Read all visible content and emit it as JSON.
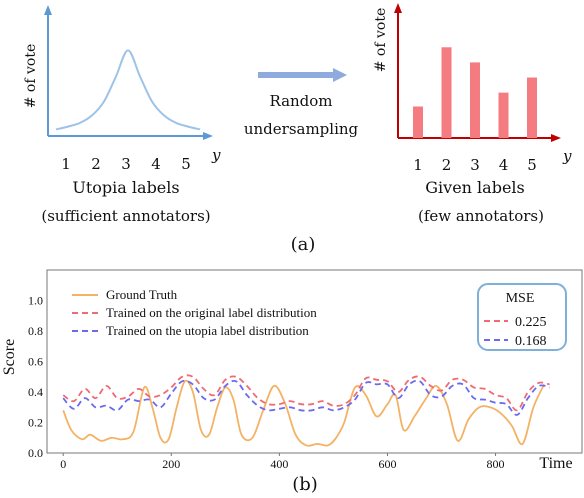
{
  "colors": {
    "bell_axis": "#5b9bd5",
    "bell_curve": "#9dc3e6",
    "red_axis": "#c00000",
    "bar_fill": "#f47b80",
    "arrow": "#8faadc",
    "ground_truth": "#f4b266",
    "original": "#ef6b73",
    "utopia": "#6a6af0",
    "legend_box": "#7fb0d8"
  },
  "panel_a": {
    "left": {
      "ylabel": "# of vote",
      "xvar": "y",
      "ticks": [
        "1",
        "2",
        "3",
        "4",
        "5"
      ],
      "title": "Utopia labels",
      "subtitle": "(sufficient annotators)"
    },
    "arrow_label": [
      "Random",
      "undersampling"
    ],
    "right": {
      "ylabel": "# of vote",
      "xvar": "y",
      "ticks": [
        "1",
        "2",
        "3",
        "4",
        "5"
      ],
      "title": "Given labels",
      "subtitle": "(few annotators)"
    },
    "caption": "(a)"
  },
  "panel_b": {
    "ylabel": "Score",
    "xlabel": "Time",
    "caption": "(b)",
    "legend": [
      "Ground Truth",
      "Trained on the original label distribution",
      "Trained on the utopia label distribution"
    ],
    "mse_box": {
      "title": "MSE",
      "values": [
        "0.225",
        "0.168"
      ]
    }
  },
  "chart_data": [
    {
      "type": "line",
      "title": "Utopia labels",
      "ylabel": "# of vote",
      "xlabel": "y",
      "x": [
        0.0,
        0.5,
        1.0,
        1.5,
        2.0,
        2.5,
        3.0,
        3.5,
        4.0,
        4.5,
        5.0,
        5.5,
        6.0
      ],
      "values": [
        0.05,
        0.08,
        0.12,
        0.2,
        0.35,
        0.62,
        0.9,
        0.62,
        0.35,
        0.2,
        0.12,
        0.08,
        0.05
      ],
      "ylim": [
        0,
        1
      ]
    },
    {
      "type": "bar",
      "title": "Given labels",
      "ylabel": "# of vote",
      "xlabel": "y",
      "categories": [
        "1",
        "2",
        "3",
        "4",
        "5"
      ],
      "values": [
        0.25,
        0.72,
        0.6,
        0.36,
        0.48
      ],
      "ylim": [
        0,
        1
      ]
    },
    {
      "type": "line",
      "ylabel": "Score",
      "xlabel": "Time",
      "xlim": [
        -30,
        960
      ],
      "ylim": [
        0,
        1.2
      ],
      "xticks": [
        0,
        200,
        400,
        600,
        800
      ],
      "yticks": [
        0.0,
        0.2,
        0.4,
        0.6,
        0.8,
        1.0
      ],
      "grid": false,
      "legend_position": "top-left",
      "series": [
        {
          "name": "Ground Truth",
          "x": [
            0,
            15,
            35,
            50,
            70,
            90,
            110,
            130,
            150,
            165,
            180,
            195,
            210,
            225,
            240,
            255,
            270,
            285,
            300,
            315,
            330,
            350,
            370,
            390,
            410,
            430,
            450,
            470,
            490,
            505,
            520,
            540,
            560,
            580,
            600,
            615,
            630,
            650,
            670,
            690,
            710,
            730,
            750,
            770,
            790,
            810,
            830,
            850,
            870,
            890
          ],
          "values": [
            0.28,
            0.15,
            0.09,
            0.12,
            0.08,
            0.1,
            0.09,
            0.14,
            0.43,
            0.3,
            0.1,
            0.09,
            0.3,
            0.47,
            0.4,
            0.15,
            0.12,
            0.3,
            0.43,
            0.35,
            0.12,
            0.1,
            0.28,
            0.44,
            0.33,
            0.12,
            0.05,
            0.06,
            0.05,
            0.1,
            0.2,
            0.43,
            0.38,
            0.24,
            0.32,
            0.38,
            0.15,
            0.24,
            0.35,
            0.44,
            0.32,
            0.08,
            0.22,
            0.3,
            0.3,
            0.26,
            0.18,
            0.06,
            0.3,
            0.45
          ]
        },
        {
          "name": "Trained on the original label distribution",
          "x": [
            0,
            20,
            40,
            60,
            80,
            100,
            120,
            140,
            160,
            180,
            200,
            220,
            240,
            260,
            280,
            300,
            320,
            340,
            360,
            380,
            400,
            420,
            440,
            460,
            480,
            500,
            520,
            540,
            560,
            580,
            600,
            620,
            640,
            660,
            680,
            700,
            720,
            740,
            760,
            780,
            800,
            820,
            840,
            860,
            880,
            900
          ],
          "values": [
            0.38,
            0.34,
            0.42,
            0.36,
            0.44,
            0.36,
            0.37,
            0.42,
            0.37,
            0.38,
            0.43,
            0.5,
            0.5,
            0.42,
            0.38,
            0.48,
            0.5,
            0.44,
            0.36,
            0.32,
            0.32,
            0.34,
            0.32,
            0.32,
            0.34,
            0.31,
            0.32,
            0.38,
            0.49,
            0.48,
            0.47,
            0.4,
            0.48,
            0.5,
            0.44,
            0.41,
            0.48,
            0.48,
            0.43,
            0.42,
            0.38,
            0.36,
            0.28,
            0.4,
            0.46,
            0.45
          ]
        },
        {
          "name": "Trained on the utopia label distribution",
          "x": [
            0,
            20,
            40,
            60,
            80,
            100,
            120,
            140,
            160,
            180,
            200,
            220,
            240,
            260,
            280,
            300,
            320,
            340,
            360,
            380,
            400,
            420,
            440,
            460,
            480,
            500,
            520,
            540,
            560,
            580,
            600,
            620,
            640,
            660,
            680,
            700,
            720,
            740,
            760,
            780,
            800,
            820,
            840,
            860,
            880,
            900
          ],
          "values": [
            0.36,
            0.29,
            0.36,
            0.3,
            0.31,
            0.28,
            0.35,
            0.34,
            0.35,
            0.3,
            0.39,
            0.47,
            0.45,
            0.36,
            0.35,
            0.44,
            0.47,
            0.38,
            0.31,
            0.28,
            0.29,
            0.3,
            0.28,
            0.28,
            0.3,
            0.28,
            0.3,
            0.35,
            0.46,
            0.45,
            0.45,
            0.36,
            0.45,
            0.47,
            0.38,
            0.37,
            0.44,
            0.45,
            0.36,
            0.35,
            0.33,
            0.32,
            0.25,
            0.36,
            0.44,
            0.43
          ]
        }
      ]
    }
  ]
}
